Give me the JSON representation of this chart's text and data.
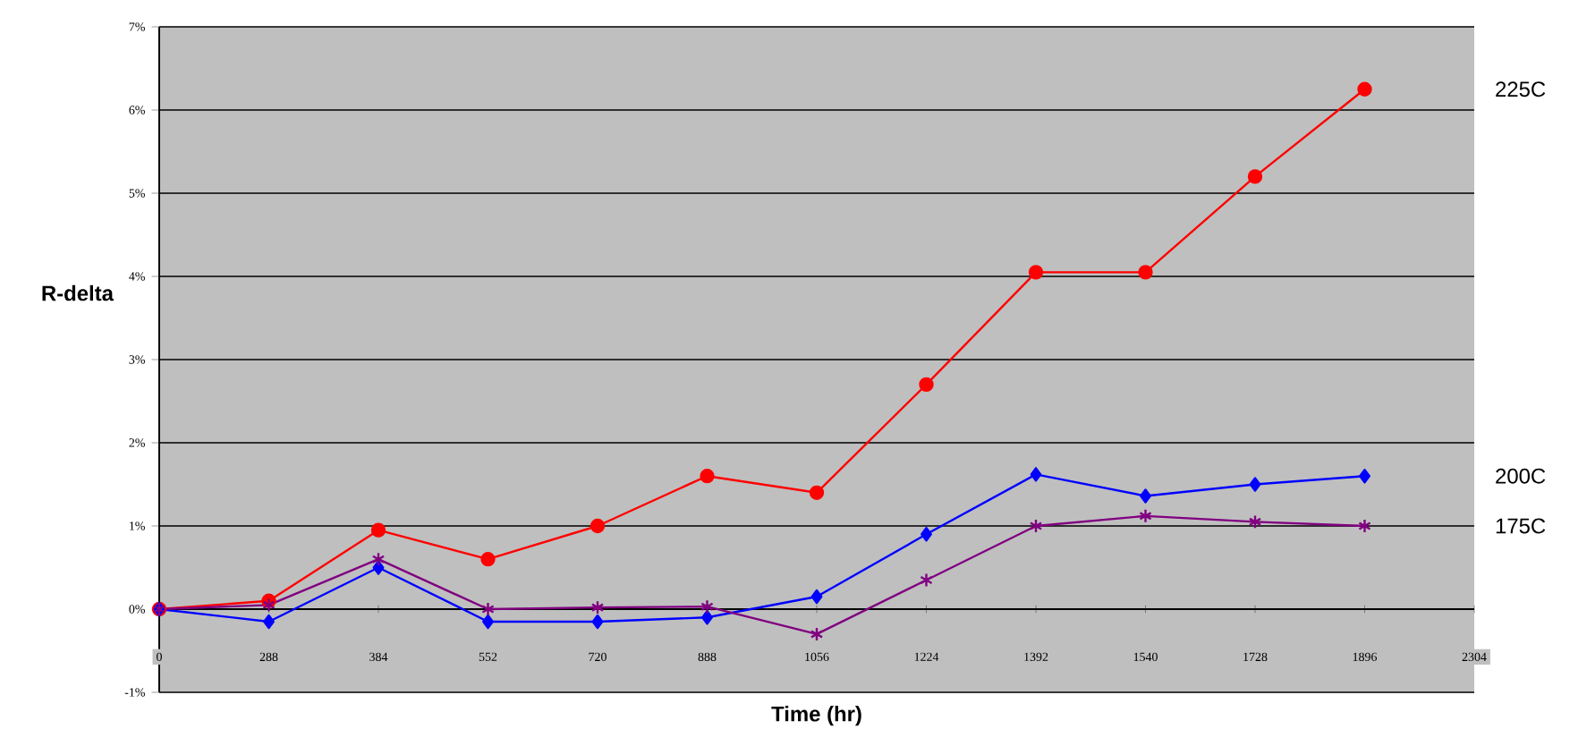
{
  "chart_data": {
    "type": "line",
    "xlabel": "Time (hr)",
    "ylabel": "R-delta",
    "categories": [
      "0",
      "288",
      "384",
      "552",
      "720",
      "888",
      "1056",
      "1224",
      "1392",
      "1540",
      "1728",
      "1896",
      "2304"
    ],
    "series": [
      {
        "name": "225C",
        "color": "#ff0000",
        "marker": "circle",
        "values": [
          0.0,
          0.1,
          0.95,
          0.6,
          1.0,
          1.6,
          1.4,
          2.7,
          4.05,
          4.05,
          5.2,
          6.25,
          null
        ]
      },
      {
        "name": "200C",
        "color": "#0000ff",
        "marker": "diamond",
        "values": [
          0.0,
          -0.15,
          0.5,
          -0.15,
          -0.15,
          -0.1,
          0.15,
          0.9,
          1.62,
          1.36,
          1.5,
          1.6,
          null
        ]
      },
      {
        "name": "175C",
        "color": "#800080",
        "marker": "cross",
        "values": [
          0.0,
          0.05,
          0.6,
          0.0,
          0.02,
          0.03,
          -0.3,
          0.35,
          1.0,
          1.12,
          1.05,
          1.0,
          null
        ]
      }
    ],
    "ylim": [
      -1,
      7
    ],
    "yticks": [
      {
        "value": -1,
        "label": "-1%"
      },
      {
        "value": 0,
        "label": "0%"
      },
      {
        "value": 1,
        "label": "1%"
      },
      {
        "value": 2,
        "label": "2%"
      },
      {
        "value": 3,
        "label": "3%"
      },
      {
        "value": 4,
        "label": "4%"
      },
      {
        "value": 5,
        "label": "5%"
      },
      {
        "value": 6,
        "label": "6%"
      },
      {
        "value": 7,
        "label": "7%"
      }
    ],
    "grid": "y",
    "legend": false,
    "line_style": "solid"
  }
}
